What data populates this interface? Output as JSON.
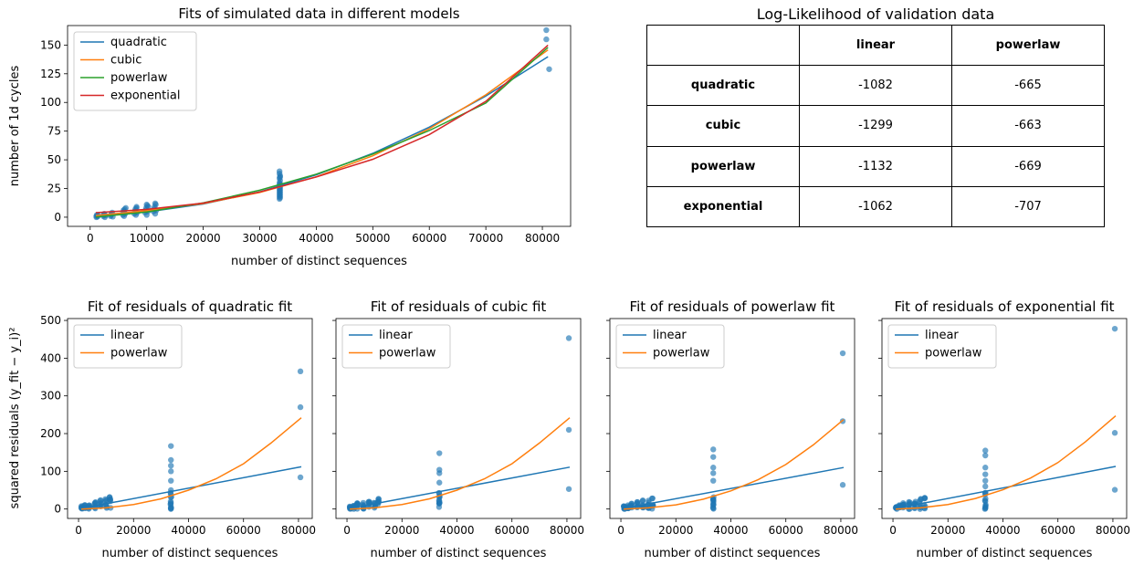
{
  "colors": {
    "quadratic": "#1f77b4",
    "cubic": "#ff7f0e",
    "powerlaw": "#2ca02c",
    "exponential": "#d62728",
    "scatter": "#1f77b4",
    "linear": "#1f77b4",
    "powerlaw_res": "#ff7f0e"
  },
  "chart_data": [
    {
      "type": "scatter",
      "title": "Fits of simulated data in different models",
      "xlabel": "number of distinct sequences",
      "ylabel": "number of 1d cycles",
      "xlim": [
        -4000,
        85000
      ],
      "ylim": [
        -8,
        167
      ],
      "xticks": [
        0,
        10000,
        20000,
        30000,
        40000,
        50000,
        60000,
        70000,
        80000
      ],
      "yticks": [
        0,
        25,
        50,
        75,
        100,
        125,
        150
      ],
      "legend": "top-left",
      "grid": false,
      "scatter_points": [
        [
          1100,
          0
        ],
        [
          1100,
          1
        ],
        [
          1200,
          2
        ],
        [
          1300,
          0.5
        ],
        [
          1400,
          1.5
        ],
        [
          2300,
          1
        ],
        [
          2400,
          2
        ],
        [
          2500,
          3
        ],
        [
          2600,
          0
        ],
        [
          2700,
          1.5
        ],
        [
          3600,
          1
        ],
        [
          3700,
          2
        ],
        [
          3800,
          3
        ],
        [
          3900,
          4
        ],
        [
          4000,
          0.5
        ],
        [
          5800,
          2
        ],
        [
          5800,
          4
        ],
        [
          5900,
          6
        ],
        [
          6000,
          1
        ],
        [
          6100,
          7
        ],
        [
          6200,
          3
        ],
        [
          6300,
          8
        ],
        [
          6000,
          5
        ],
        [
          7800,
          3
        ],
        [
          7900,
          5
        ],
        [
          8000,
          7
        ],
        [
          8100,
          2
        ],
        [
          8200,
          8
        ],
        [
          8300,
          4
        ],
        [
          8200,
          9
        ],
        [
          9700,
          4
        ],
        [
          9800,
          6
        ],
        [
          9900,
          8
        ],
        [
          10000,
          2
        ],
        [
          10100,
          10
        ],
        [
          10200,
          5
        ],
        [
          10300,
          9
        ],
        [
          10000,
          11
        ],
        [
          11200,
          5
        ],
        [
          11300,
          7
        ],
        [
          11400,
          9
        ],
        [
          11500,
          3
        ],
        [
          11600,
          11
        ],
        [
          11700,
          6
        ],
        [
          11500,
          12
        ],
        [
          33500,
          40
        ],
        [
          33500,
          38
        ],
        [
          33600,
          36
        ],
        [
          33500,
          34
        ],
        [
          33600,
          32
        ],
        [
          33500,
          30
        ],
        [
          33600,
          29
        ],
        [
          33500,
          28
        ],
        [
          33600,
          27
        ],
        [
          33500,
          26
        ],
        [
          33600,
          25
        ],
        [
          33500,
          24
        ],
        [
          33600,
          23
        ],
        [
          33500,
          22
        ],
        [
          33600,
          21
        ],
        [
          33500,
          20
        ],
        [
          33600,
          19
        ],
        [
          33500,
          18
        ],
        [
          33600,
          17
        ],
        [
          33500,
          16
        ],
        [
          33600,
          35
        ],
        [
          80700,
          163
        ],
        [
          80700,
          155
        ],
        [
          81200,
          129
        ]
      ],
      "series": [
        {
          "name": "quadratic",
          "x": [
            1000,
            10000,
            20000,
            30000,
            40000,
            50000,
            60000,
            70000,
            81000
          ],
          "y": [
            0.7,
            4.5,
            11.5,
            22.1,
            36.9,
            55.6,
            78.5,
            105.6,
            139.9
          ]
        },
        {
          "name": "cubic",
          "x": [
            1000,
            10000,
            20000,
            30000,
            40000,
            50000,
            60000,
            70000,
            81000
          ],
          "y": [
            1.5,
            5.7,
            11.9,
            21.5,
            35.2,
            53.5,
            77.1,
            106.6,
            145.8
          ]
        },
        {
          "name": "powerlaw",
          "x": [
            1000,
            10000,
            20000,
            30000,
            40000,
            50000,
            60000,
            70000,
            81000
          ],
          "y": [
            0.2,
            4.5,
            12.5,
            23.5,
            37.5,
            55.0,
            75.5,
            99.5,
            148.0
          ]
        },
        {
          "name": "exponential",
          "x": [
            1000,
            10000,
            20000,
            30000,
            40000,
            50000,
            60000,
            70000,
            81000
          ],
          "y": [
            3.9,
            6.8,
            12.3,
            22.0,
            35.0,
            50.5,
            72.0,
            101.0,
            150.0
          ]
        }
      ]
    },
    {
      "type": "table",
      "title": "Log-Likelihood of validation data",
      "columns": [
        "",
        "linear",
        "powerlaw"
      ],
      "rows": [
        [
          "quadratic",
          "-1082",
          "-665"
        ],
        [
          "cubic",
          "-1299",
          "-663"
        ],
        [
          "powerlaw",
          "-1132",
          "-669"
        ],
        [
          "exponential",
          "-1062",
          "-707"
        ]
      ]
    },
    {
      "type": "scatter",
      "title": "Fit of residuals of quadratic fit",
      "xlabel": "number of distinct sequences",
      "ylabel": "squared residuals (y_fit − y_i)²",
      "xlim": [
        -4000,
        85000
      ],
      "ylim": [
        -25,
        505
      ],
      "xticks": [
        0,
        20000,
        40000,
        60000,
        80000
      ],
      "yticks": [
        0,
        100,
        200,
        300,
        400,
        500
      ],
      "legend": "top-left",
      "outliers": [
        [
          33600,
          167
        ],
        [
          33600,
          130
        ],
        [
          33600,
          115
        ],
        [
          33600,
          100
        ],
        [
          33600,
          75
        ],
        [
          33600,
          50
        ],
        [
          80700,
          365
        ],
        [
          80700,
          270
        ],
        [
          80700,
          84
        ]
      ],
      "series": [
        {
          "name": "linear",
          "x": [
            1000,
            81000
          ],
          "y": [
            1.5,
            112
          ]
        },
        {
          "name": "powerlaw",
          "x": [
            1000,
            10000,
            20000,
            30000,
            40000,
            50000,
            60000,
            70000,
            81000
          ],
          "y": [
            0,
            3,
            12,
            27,
            50,
            80,
            120,
            175,
            242
          ]
        }
      ]
    },
    {
      "type": "scatter",
      "title": "Fit of residuals of cubic fit",
      "xlabel": "number of distinct sequences",
      "xlim": [
        -4000,
        85000
      ],
      "ylim": [
        -25,
        505
      ],
      "xticks": [
        0,
        20000,
        40000,
        60000,
        80000
      ],
      "legend": "top-left",
      "outliers": [
        [
          33600,
          148
        ],
        [
          33600,
          104
        ],
        [
          33600,
          95
        ],
        [
          33600,
          70
        ],
        [
          80700,
          453
        ],
        [
          80700,
          210
        ],
        [
          80700,
          53
        ]
      ],
      "series": [
        {
          "name": "linear",
          "x": [
            1000,
            81000
          ],
          "y": [
            1.5,
            111
          ]
        },
        {
          "name": "powerlaw",
          "x": [
            1000,
            10000,
            20000,
            30000,
            40000,
            50000,
            60000,
            70000,
            81000
          ],
          "y": [
            0,
            3,
            12,
            27,
            50,
            80,
            120,
            175,
            242
          ]
        }
      ]
    },
    {
      "type": "scatter",
      "title": "Fit of residuals of powerlaw fit",
      "xlabel": "number of distinct sequences",
      "xlim": [
        -4000,
        85000
      ],
      "ylim": [
        -25,
        505
      ],
      "xticks": [
        0,
        20000,
        40000,
        60000,
        80000
      ],
      "legend": "top-left",
      "outliers": [
        [
          33600,
          158
        ],
        [
          33600,
          138
        ],
        [
          33600,
          110
        ],
        [
          33600,
          95
        ],
        [
          33600,
          75
        ],
        [
          80700,
          413
        ],
        [
          80700,
          233
        ],
        [
          80700,
          64
        ]
      ],
      "series": [
        {
          "name": "linear",
          "x": [
            1000,
            81000
          ],
          "y": [
            1.5,
            110
          ]
        },
        {
          "name": "powerlaw",
          "x": [
            1000,
            10000,
            20000,
            30000,
            40000,
            50000,
            60000,
            70000,
            81000
          ],
          "y": [
            0,
            3,
            11,
            26,
            48,
            78,
            118,
            170,
            237
          ]
        }
      ]
    },
    {
      "type": "scatter",
      "title": "Fit of residuals of exponential fit",
      "xlabel": "number of distinct sequences",
      "xlim": [
        -4000,
        85000
      ],
      "ylim": [
        -25,
        505
      ],
      "xticks": [
        0,
        20000,
        40000,
        60000,
        80000
      ],
      "legend": "top-left",
      "outliers": [
        [
          33600,
          155
        ],
        [
          33600,
          142
        ],
        [
          33600,
          110
        ],
        [
          33600,
          92
        ],
        [
          33600,
          75
        ],
        [
          33600,
          60
        ],
        [
          80700,
          478
        ],
        [
          80700,
          202
        ],
        [
          80700,
          51
        ]
      ],
      "series": [
        {
          "name": "linear",
          "x": [
            1000,
            81000
          ],
          "y": [
            1.5,
            113
          ]
        },
        {
          "name": "powerlaw",
          "x": [
            1000,
            10000,
            20000,
            30000,
            40000,
            50000,
            60000,
            70000,
            81000
          ],
          "y": [
            0,
            3,
            12,
            28,
            51,
            82,
            123,
            178,
            247
          ]
        }
      ]
    }
  ]
}
